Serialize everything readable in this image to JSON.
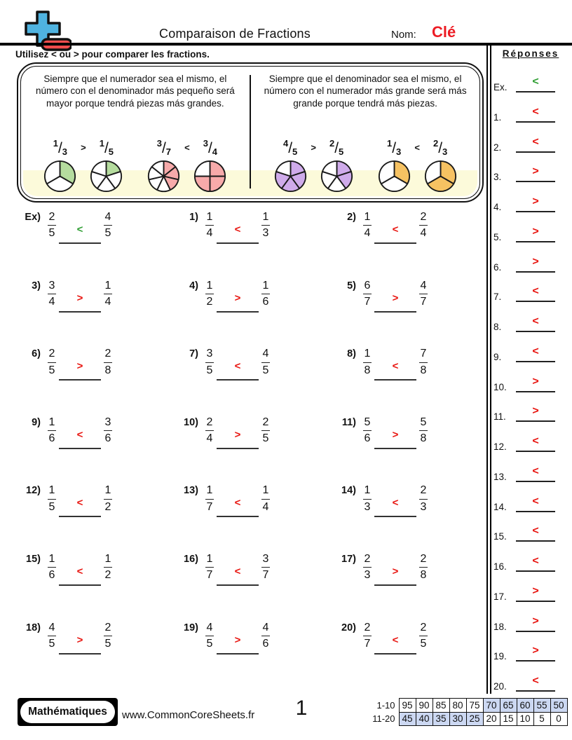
{
  "header": {
    "logo_icon": "plus-minus-icon",
    "title": "Comparaison de Fractions",
    "name_label": "Nom:",
    "name_value": "Clé"
  },
  "instruction": "Utilisez < ou > pour comparer les fractions.",
  "rules": {
    "left": {
      "text": "Siempre que el numerador sea el mismo, el número con el denominador más pequeño será mayor porque tendrá piezas más grandes.",
      "examples": [
        {
          "frac1": {
            "n": "1",
            "d": "3"
          },
          "op": ">",
          "frac2": {
            "n": "1",
            "d": "5"
          },
          "pie1": {
            "slices": 3,
            "shaded": 1
          },
          "pie2": {
            "slices": 5,
            "shaded": 1
          },
          "color": "#b5dc9e"
        },
        {
          "frac1": {
            "n": "3",
            "d": "7"
          },
          "op": "<",
          "frac2": {
            "n": "3",
            "d": "4"
          },
          "pie1": {
            "slices": 7,
            "shaded": 3
          },
          "pie2": {
            "slices": 4,
            "shaded": 3
          },
          "color": "#f7aaaa"
        }
      ]
    },
    "right": {
      "text": "Siempre que el denominador sea el mismo, el número con el numerador más grande será más grande porque tendrá más piezas.",
      "examples": [
        {
          "frac1": {
            "n": "4",
            "d": "5"
          },
          "op": ">",
          "frac2": {
            "n": "2",
            "d": "5"
          },
          "pie1": {
            "slices": 5,
            "shaded": 4
          },
          "pie2": {
            "slices": 5,
            "shaded": 2
          },
          "color": "#cfabea"
        },
        {
          "frac1": {
            "n": "1",
            "d": "3"
          },
          "op": "<",
          "frac2": {
            "n": "2",
            "d": "3"
          },
          "pie1": {
            "slices": 3,
            "shaded": 1
          },
          "pie2": {
            "slices": 3,
            "shaded": 2
          },
          "color": "#f6c262"
        }
      ]
    }
  },
  "problems": [
    {
      "label": "Ex)",
      "n1": "2",
      "d1": "5",
      "op": "<",
      "n2": "4",
      "d2": "5",
      "answer_color": "green"
    },
    {
      "label": "1)",
      "n1": "1",
      "d1": "4",
      "op": "<",
      "n2": "1",
      "d2": "3",
      "answer_color": "red"
    },
    {
      "label": "2)",
      "n1": "1",
      "d1": "4",
      "op": "<",
      "n2": "2",
      "d2": "4",
      "answer_color": "red"
    },
    {
      "label": "3)",
      "n1": "3",
      "d1": "4",
      "op": ">",
      "n2": "1",
      "d2": "4",
      "answer_color": "red"
    },
    {
      "label": "4)",
      "n1": "1",
      "d1": "2",
      "op": ">",
      "n2": "1",
      "d2": "6",
      "answer_color": "red"
    },
    {
      "label": "5)",
      "n1": "6",
      "d1": "7",
      "op": ">",
      "n2": "4",
      "d2": "7",
      "answer_color": "red"
    },
    {
      "label": "6)",
      "n1": "2",
      "d1": "5",
      "op": ">",
      "n2": "2",
      "d2": "8",
      "answer_color": "red"
    },
    {
      "label": "7)",
      "n1": "3",
      "d1": "5",
      "op": "<",
      "n2": "4",
      "d2": "5",
      "answer_color": "red"
    },
    {
      "label": "8)",
      "n1": "1",
      "d1": "8",
      "op": "<",
      "n2": "7",
      "d2": "8",
      "answer_color": "red"
    },
    {
      "label": "9)",
      "n1": "1",
      "d1": "6",
      "op": "<",
      "n2": "3",
      "d2": "6",
      "answer_color": "red"
    },
    {
      "label": "10)",
      "n1": "2",
      "d1": "4",
      "op": ">",
      "n2": "2",
      "d2": "5",
      "answer_color": "red"
    },
    {
      "label": "11)",
      "n1": "5",
      "d1": "6",
      "op": ">",
      "n2": "5",
      "d2": "8",
      "answer_color": "red"
    },
    {
      "label": "12)",
      "n1": "1",
      "d1": "5",
      "op": "<",
      "n2": "1",
      "d2": "2",
      "answer_color": "red"
    },
    {
      "label": "13)",
      "n1": "1",
      "d1": "7",
      "op": "<",
      "n2": "1",
      "d2": "4",
      "answer_color": "red"
    },
    {
      "label": "14)",
      "n1": "1",
      "d1": "3",
      "op": "<",
      "n2": "2",
      "d2": "3",
      "answer_color": "red"
    },
    {
      "label": "15)",
      "n1": "1",
      "d1": "6",
      "op": "<",
      "n2": "1",
      "d2": "2",
      "answer_color": "red"
    },
    {
      "label": "16)",
      "n1": "1",
      "d1": "7",
      "op": "<",
      "n2": "3",
      "d2": "7",
      "answer_color": "red"
    },
    {
      "label": "17)",
      "n1": "2",
      "d1": "3",
      "op": ">",
      "n2": "2",
      "d2": "8",
      "answer_color": "red"
    },
    {
      "label": "18)",
      "n1": "4",
      "d1": "5",
      "op": ">",
      "n2": "2",
      "d2": "5",
      "answer_color": "red"
    },
    {
      "label": "19)",
      "n1": "4",
      "d1": "5",
      "op": ">",
      "n2": "4",
      "d2": "6",
      "answer_color": "red"
    },
    {
      "label": "20)",
      "n1": "2",
      "d1": "7",
      "op": "<",
      "n2": "2",
      "d2": "5",
      "answer_color": "red"
    }
  ],
  "answers": {
    "title": "Réponses",
    "items": [
      {
        "label": "Ex.",
        "op": "<",
        "color": "green"
      },
      {
        "label": "1.",
        "op": "<",
        "color": "red"
      },
      {
        "label": "2.",
        "op": "<",
        "color": "red"
      },
      {
        "label": "3.",
        "op": ">",
        "color": "red"
      },
      {
        "label": "4.",
        "op": ">",
        "color": "red"
      },
      {
        "label": "5.",
        "op": ">",
        "color": "red"
      },
      {
        "label": "6.",
        "op": ">",
        "color": "red"
      },
      {
        "label": "7.",
        "op": "<",
        "color": "red"
      },
      {
        "label": "8.",
        "op": "<",
        "color": "red"
      },
      {
        "label": "9.",
        "op": "<",
        "color": "red"
      },
      {
        "label": "10.",
        "op": ">",
        "color": "red"
      },
      {
        "label": "11.",
        "op": ">",
        "color": "red"
      },
      {
        "label": "12.",
        "op": "<",
        "color": "red"
      },
      {
        "label": "13.",
        "op": "<",
        "color": "red"
      },
      {
        "label": "14.",
        "op": "<",
        "color": "red"
      },
      {
        "label": "15.",
        "op": "<",
        "color": "red"
      },
      {
        "label": "16.",
        "op": "<",
        "color": "red"
      },
      {
        "label": "17.",
        "op": ">",
        "color": "red"
      },
      {
        "label": "18.",
        "op": ">",
        "color": "red"
      },
      {
        "label": "19.",
        "op": ">",
        "color": "red"
      },
      {
        "label": "20.",
        "op": "<",
        "color": "red"
      }
    ]
  },
  "footer": {
    "brand": "Mathématiques",
    "url": "www.CommonCoreSheets.fr",
    "page": "1",
    "score_table": [
      {
        "label": "1-10",
        "cells": [
          {
            "v": "95",
            "hl": false
          },
          {
            "v": "90",
            "hl": false
          },
          {
            "v": "85",
            "hl": false
          },
          {
            "v": "80",
            "hl": false
          },
          {
            "v": "75",
            "hl": false
          },
          {
            "v": "70",
            "hl": true
          },
          {
            "v": "65",
            "hl": true
          },
          {
            "v": "60",
            "hl": true
          },
          {
            "v": "55",
            "hl": true
          },
          {
            "v": "50",
            "hl": true
          }
        ]
      },
      {
        "label": "11-20",
        "cells": [
          {
            "v": "45",
            "hl": true
          },
          {
            "v": "40",
            "hl": true
          },
          {
            "v": "35",
            "hl": true
          },
          {
            "v": "30",
            "hl": true
          },
          {
            "v": "25",
            "hl": true
          },
          {
            "v": "20",
            "hl": false
          },
          {
            "v": "15",
            "hl": false
          },
          {
            "v": "10",
            "hl": false
          },
          {
            "v": "5",
            "hl": false
          },
          {
            "v": "0",
            "hl": false
          }
        ]
      }
    ]
  },
  "colors": {
    "red": "#e8140f",
    "green": "#2f9e33",
    "name_red": "#ed1c24",
    "table_highlight": "#ccd8f2",
    "yellow_band": "#fcfada",
    "logo_blue": "#4fb3e0",
    "logo_red": "#f24d4d"
  }
}
